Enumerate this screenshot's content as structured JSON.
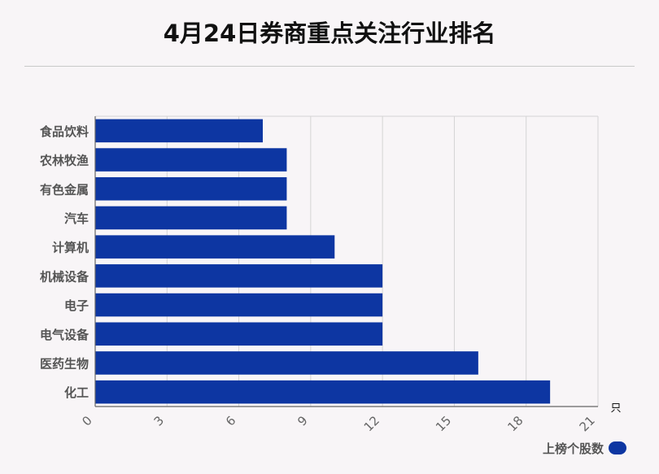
{
  "title": "4月24日券商重点关注行业排名",
  "chart_data": {
    "type": "bar",
    "orientation": "horizontal",
    "title": "4月24日券商重点关注行业排名",
    "categories": [
      "食品饮料",
      "农林牧渔",
      "有色金属",
      "汽车",
      "计算机",
      "机械设备",
      "电子",
      "电气设备",
      "医药生物",
      "化工"
    ],
    "series": [
      {
        "name": "上榜个股数",
        "values": [
          7,
          8,
          8,
          8,
          10,
          12,
          12,
          12,
          16,
          19
        ]
      }
    ],
    "xlim": [
      0,
      21
    ],
    "x_ticks": [
      "0",
      "3",
      "6",
      "9",
      "12",
      "15",
      "18",
      "21"
    ],
    "unit_label": "只",
    "grid": true,
    "legend_position": "bottom-right",
    "bar_color": "#0d36a2"
  }
}
